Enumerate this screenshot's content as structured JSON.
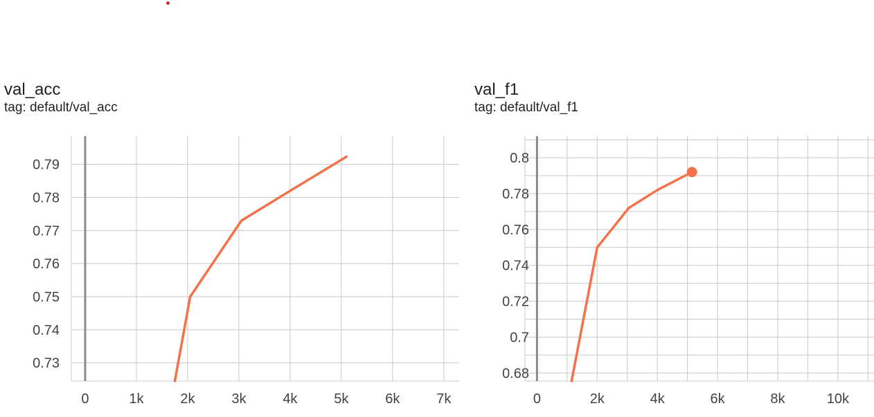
{
  "chart_data": [
    {
      "type": "line",
      "title": "val_acc",
      "subtitle": "tag: default/val_acc",
      "x_ticks": [
        "0",
        "1k",
        "2k",
        "3k",
        "4k",
        "5k",
        "6k",
        "7k"
      ],
      "y_ticks": [
        "0.73",
        "0.74",
        "0.75",
        "0.76",
        "0.77",
        "0.78",
        "0.79"
      ],
      "xlim": [
        -270,
        7300
      ],
      "ylim": [
        0.7245,
        0.7985
      ],
      "series": [
        {
          "color": "#f4714a",
          "x": [
            1750,
            2050,
            3050,
            4000,
            5100
          ],
          "y": [
            0.7245,
            0.75,
            0.773,
            0.782,
            0.7923
          ]
        }
      ],
      "grid": true
    },
    {
      "type": "line",
      "title": "val_f1",
      "subtitle": "tag: default/val_f1",
      "x_ticks": [
        "0",
        "2k",
        "4k",
        "6k",
        "8k",
        "10k"
      ],
      "y_ticks": [
        "0.68",
        "0.7",
        "0.72",
        "0.74",
        "0.76",
        "0.78",
        "0.8"
      ],
      "xlim": [
        -400,
        11200
      ],
      "ylim": [
        0.6755,
        0.812
      ],
      "series": [
        {
          "color": "#f4714a",
          "x": [
            1150,
            2000,
            3050,
            4000,
            5150
          ],
          "y": [
            0.6755,
            0.75,
            0.772,
            0.782,
            0.792
          ]
        }
      ],
      "highlight_point": {
        "x": 5150,
        "y": 0.792
      },
      "grid": true
    }
  ]
}
